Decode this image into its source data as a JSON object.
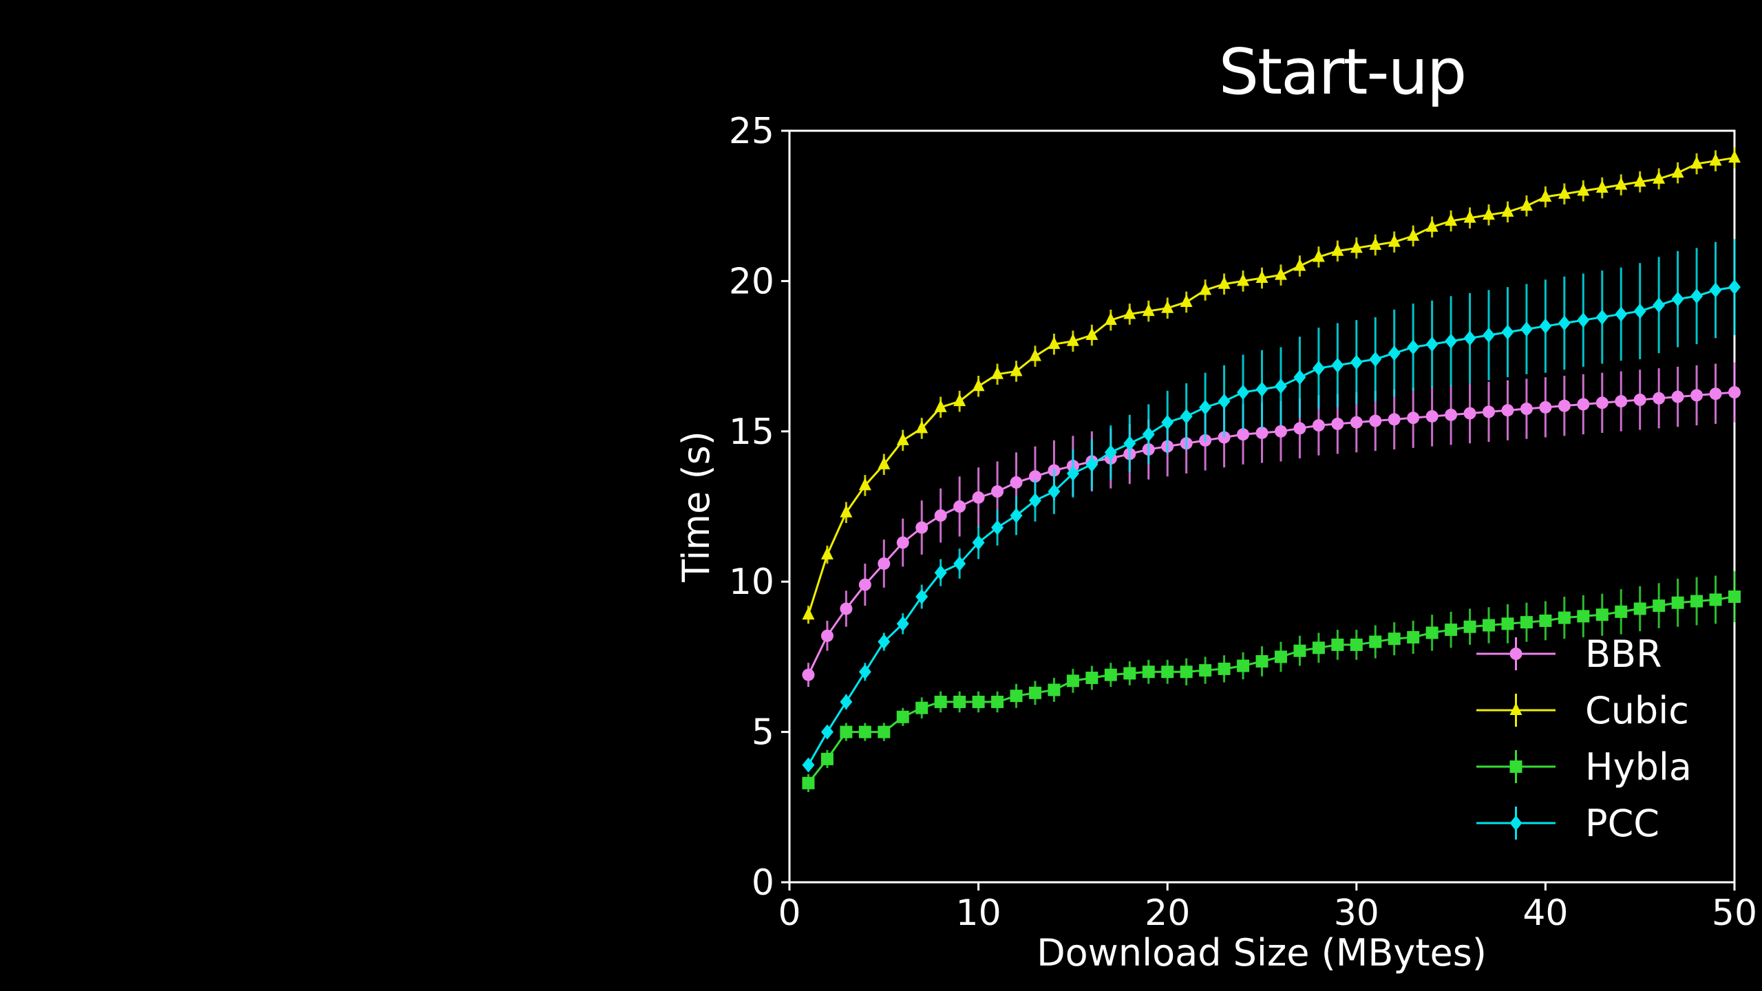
{
  "slide": {
    "title": "Start-up"
  },
  "chart_data": {
    "type": "line",
    "title": "Start-up",
    "xlabel": "Download Size (MBytes)",
    "ylabel": "Time (s)",
    "xlim": [
      0,
      50
    ],
    "ylim": [
      0,
      25
    ],
    "xticks": [
      0,
      10,
      20,
      30,
      40,
      50
    ],
    "yticks": [
      0,
      5,
      10,
      15,
      20,
      25
    ],
    "grid": false,
    "legend_position": "bottom-right",
    "error_bars": true,
    "x": [
      1,
      2,
      3,
      4,
      5,
      6,
      7,
      8,
      9,
      10,
      11,
      12,
      13,
      14,
      15,
      16,
      17,
      18,
      19,
      20,
      21,
      22,
      23,
      24,
      25,
      26,
      27,
      28,
      29,
      30,
      31,
      32,
      33,
      34,
      35,
      36,
      37,
      38,
      39,
      40,
      41,
      42,
      43,
      44,
      45,
      46,
      47,
      48,
      49,
      50
    ],
    "series": [
      {
        "name": "BBR",
        "color": "#ee82ee",
        "marker": "circle",
        "values": [
          6.9,
          8.2,
          9.1,
          9.9,
          10.6,
          11.3,
          11.8,
          12.2,
          12.5,
          12.8,
          13.0,
          13.3,
          13.5,
          13.7,
          13.85,
          14.0,
          14.1,
          14.25,
          14.4,
          14.5,
          14.6,
          14.7,
          14.8,
          14.9,
          14.95,
          15.0,
          15.1,
          15.2,
          15.25,
          15.3,
          15.35,
          15.4,
          15.45,
          15.5,
          15.55,
          15.6,
          15.65,
          15.7,
          15.75,
          15.8,
          15.85,
          15.9,
          15.95,
          16.0,
          16.05,
          16.1,
          16.15,
          16.2,
          16.25,
          16.3
        ],
        "errors": [
          0.4,
          0.5,
          0.6,
          0.7,
          0.8,
          0.8,
          0.9,
          0.9,
          1.0,
          1.0,
          1.0,
          1.0,
          1.0,
          1.0,
          1.0,
          1.0,
          1.0,
          1.0,
          1.0,
          1.0,
          1.0,
          1.0,
          1.0,
          1.0,
          1.0,
          1.0,
          1.0,
          1.0,
          1.0,
          1.0,
          1.0,
          1.0,
          1.0,
          1.0,
          1.0,
          1.0,
          1.0,
          1.0,
          1.0,
          1.0,
          1.0,
          1.0,
          1.0,
          1.0,
          1.0,
          1.0,
          1.0,
          1.0,
          1.0,
          1.0
        ]
      },
      {
        "name": "Cubic",
        "color": "#eeee00",
        "marker": "triangle",
        "values": [
          8.9,
          10.9,
          12.3,
          13.2,
          13.9,
          14.7,
          15.1,
          15.8,
          16.0,
          16.5,
          16.9,
          17.0,
          17.5,
          17.9,
          18.0,
          18.2,
          18.7,
          18.9,
          19.0,
          19.1,
          19.3,
          19.7,
          19.9,
          20.0,
          20.1,
          20.2,
          20.5,
          20.8,
          21.0,
          21.1,
          21.2,
          21.3,
          21.5,
          21.8,
          22.0,
          22.1,
          22.2,
          22.3,
          22.5,
          22.8,
          22.9,
          23.0,
          23.1,
          23.2,
          23.3,
          23.4,
          23.6,
          23.9,
          24.0,
          24.1
        ],
        "errors": [
          0.3,
          0.3,
          0.35,
          0.35,
          0.35,
          0.35,
          0.35,
          0.35,
          0.35,
          0.35,
          0.35,
          0.35,
          0.35,
          0.35,
          0.35,
          0.35,
          0.35,
          0.35,
          0.35,
          0.35,
          0.35,
          0.35,
          0.35,
          0.35,
          0.35,
          0.35,
          0.35,
          0.35,
          0.35,
          0.35,
          0.35,
          0.35,
          0.35,
          0.35,
          0.35,
          0.35,
          0.35,
          0.35,
          0.35,
          0.35,
          0.35,
          0.35,
          0.35,
          0.35,
          0.35,
          0.35,
          0.35,
          0.35,
          0.35,
          0.35
        ]
      },
      {
        "name": "Hybla",
        "color": "#33dd33",
        "marker": "square",
        "values": [
          3.3,
          4.1,
          5.0,
          5.0,
          5.0,
          5.5,
          5.8,
          6.0,
          6.0,
          6.0,
          6.0,
          6.2,
          6.3,
          6.4,
          6.7,
          6.8,
          6.9,
          6.95,
          7.0,
          7.0,
          7.0,
          7.05,
          7.1,
          7.2,
          7.35,
          7.5,
          7.7,
          7.8,
          7.9,
          7.9,
          8.0,
          8.1,
          8.15,
          8.3,
          8.4,
          8.5,
          8.55,
          8.6,
          8.65,
          8.7,
          8.8,
          8.85,
          8.9,
          9.0,
          9.1,
          9.2,
          9.3,
          9.35,
          9.4,
          9.5
        ],
        "errors": [
          0.3,
          0.3,
          0.3,
          0.3,
          0.3,
          0.3,
          0.35,
          0.35,
          0.35,
          0.35,
          0.35,
          0.4,
          0.4,
          0.4,
          0.4,
          0.4,
          0.4,
          0.4,
          0.4,
          0.4,
          0.45,
          0.45,
          0.45,
          0.45,
          0.5,
          0.5,
          0.5,
          0.5,
          0.5,
          0.5,
          0.55,
          0.55,
          0.55,
          0.6,
          0.6,
          0.6,
          0.6,
          0.65,
          0.65,
          0.65,
          0.7,
          0.7,
          0.7,
          0.75,
          0.75,
          0.75,
          0.8,
          0.8,
          0.8,
          0.85
        ]
      },
      {
        "name": "PCC",
        "color": "#00e5ee",
        "marker": "diamond",
        "values": [
          3.9,
          5.0,
          6.0,
          7.0,
          8.0,
          8.6,
          9.5,
          10.3,
          10.6,
          11.3,
          11.8,
          12.2,
          12.7,
          13.0,
          13.6,
          13.9,
          14.3,
          14.6,
          14.9,
          15.3,
          15.5,
          15.8,
          16.0,
          16.3,
          16.4,
          16.5,
          16.8,
          17.1,
          17.2,
          17.3,
          17.4,
          17.6,
          17.8,
          17.9,
          18.0,
          18.1,
          18.2,
          18.3,
          18.4,
          18.5,
          18.6,
          18.7,
          18.8,
          18.9,
          19.0,
          19.2,
          19.4,
          19.5,
          19.7,
          19.8
        ],
        "errors": [
          0.2,
          0.2,
          0.25,
          0.3,
          0.3,
          0.35,
          0.4,
          0.45,
          0.5,
          0.55,
          0.6,
          0.65,
          0.7,
          0.75,
          0.8,
          0.85,
          0.9,
          0.95,
          1.0,
          1.05,
          1.1,
          1.15,
          1.2,
          1.25,
          1.3,
          1.3,
          1.35,
          1.35,
          1.4,
          1.4,
          1.4,
          1.45,
          1.45,
          1.45,
          1.5,
          1.5,
          1.5,
          1.5,
          1.5,
          1.55,
          1.55,
          1.55,
          1.55,
          1.55,
          1.6,
          1.6,
          1.6,
          1.6,
          1.6,
          1.6
        ]
      }
    ]
  }
}
